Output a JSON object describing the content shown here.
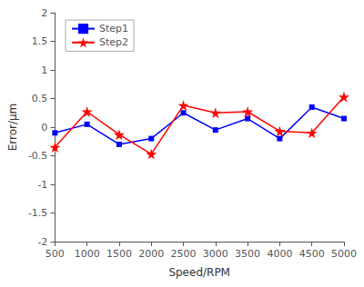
{
  "chart_data": {
    "type": "line",
    "x": [
      500,
      1000,
      1500,
      2000,
      2500,
      3000,
      3500,
      4000,
      4500,
      5000
    ],
    "series": [
      {
        "name": "Step1",
        "color": "#0000FF",
        "marker": "square",
        "values": [
          -0.1,
          0.05,
          -0.3,
          -0.2,
          0.25,
          -0.05,
          0.15,
          -0.2,
          0.35,
          0.15
        ]
      },
      {
        "name": "Step2",
        "color": "#FF0000",
        "marker": "star",
        "values": [
          -0.35,
          0.27,
          -0.13,
          -0.47,
          0.38,
          0.25,
          0.27,
          -0.07,
          -0.1,
          0.53
        ]
      }
    ],
    "xlabel": "Speed/RPM",
    "ylabel": "Error/μm",
    "xlim": [
      500,
      5000
    ],
    "ylim": [
      -2,
      2
    ],
    "xticks": [
      500,
      1000,
      1500,
      2000,
      2500,
      3000,
      3500,
      4000,
      4500,
      5000
    ],
    "yticks": [
      -2,
      -1.5,
      -1,
      -0.5,
      0,
      0.5,
      1,
      1.5,
      2
    ],
    "grid": false,
    "legend": "upper left"
  }
}
